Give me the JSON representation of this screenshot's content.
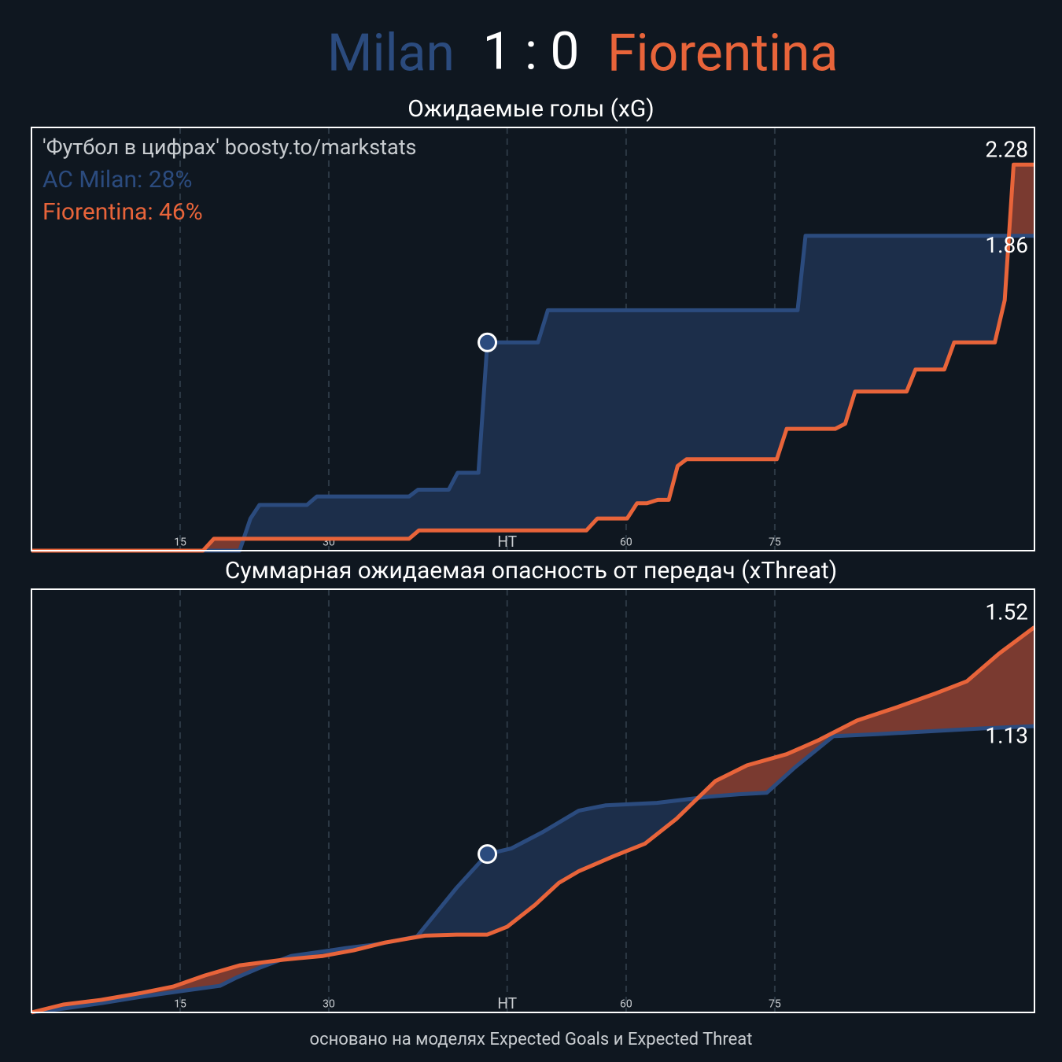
{
  "header": {
    "home": "Milan",
    "score": "1 : 0",
    "away": "Fiorentina"
  },
  "chart_data": [
    {
      "type": "line",
      "title": "Ожидаемые голы (xG)",
      "annotations": [
        "'Футбол в цифрах' boosty.to/markstats",
        "AC Milan: 28%",
        "Fiorentina: 46%"
      ],
      "xlim": [
        0,
        101.2
      ],
      "ylim": [
        0,
        2.5
      ],
      "xticks": [
        15,
        30,
        {
          "value": 48,
          "label": "HT"
        },
        60,
        75
      ],
      "grid": true,
      "goal_minute": 46,
      "series": [
        {
          "color": "#2b4b7e",
          "fill": "#1c2e4a",
          "x": [
            0,
            21,
            22.1,
            23,
            27.8,
            28.8,
            38.1,
            39,
            42.1,
            43,
            45.1,
            46,
            51.1,
            52.1,
            77.3,
            78.1,
            101.2
          ],
          "values": [
            0,
            0,
            0.19,
            0.27,
            0.27,
            0.32,
            0.32,
            0.36,
            0.36,
            0.46,
            0.46,
            1.23,
            1.23,
            1.42,
            1.42,
            1.86,
            1.86
          ]
        },
        {
          "color": "#e8643a",
          "fill": "#7a3a30",
          "x": [
            0,
            17.3,
            18.4,
            38.1,
            39.1,
            56,
            57.1,
            60.1,
            61.1,
            62.1,
            63.2,
            64.3,
            65.2,
            66.1,
            75.2,
            76.2,
            81.1,
            82.1,
            83.1,
            88.3,
            89.2,
            92.1,
            93.1,
            97.2,
            98.2,
            99.1,
            101.2
          ],
          "values": [
            0,
            0,
            0.07,
            0.07,
            0.12,
            0.12,
            0.19,
            0.19,
            0.28,
            0.28,
            0.3,
            0.3,
            0.5,
            0.54,
            0.54,
            0.72,
            0.72,
            0.75,
            0.94,
            0.94,
            1.07,
            1.07,
            1.23,
            1.23,
            1.48,
            2.28,
            2.28
          ]
        }
      ]
    },
    {
      "type": "line",
      "title": "Суммарная ожидаемая опасность от передач (xThreat)",
      "xlim": [
        0,
        101.2
      ],
      "ylim": [
        0,
        1.67
      ],
      "xticks": [
        15,
        30,
        {
          "value": 48,
          "label": "HT"
        },
        60,
        75
      ],
      "grid": true,
      "goal_minute": 46,
      "series": [
        {
          "color": "#2b4b7e",
          "fill": "#1c2e4a",
          "x": [
            0,
            3.2,
            7.1,
            11.1,
            15.1,
            19,
            20.6,
            23,
            26.2,
            30.2,
            31.7,
            34.9,
            38.9,
            42.9,
            46,
            48.4,
            51.6,
            55.2,
            57.9,
            63.1,
            68.3,
            71.4,
            74.2,
            77,
            80.9,
            85.7,
            91.3,
            96,
            101.2
          ],
          "values": [
            0,
            0.015,
            0.037,
            0.062,
            0.084,
            0.105,
            0.136,
            0.176,
            0.223,
            0.245,
            0.254,
            0.269,
            0.3,
            0.492,
            0.625,
            0.647,
            0.712,
            0.796,
            0.817,
            0.827,
            0.851,
            0.861,
            0.867,
            0.966,
            1.09,
            1.099,
            1.111,
            1.121,
            1.13
          ]
        },
        {
          "color": "#e8643a",
          "fill": "#7a3a30",
          "x": [
            0,
            3.2,
            7.1,
            11.1,
            14.3,
            17.5,
            21,
            25.4,
            29.4,
            32.5,
            35.7,
            39.7,
            42.9,
            46,
            48,
            50.8,
            53.2,
            55.2,
            58.7,
            61.9,
            65.1,
            69,
            72.2,
            76.2,
            79.4,
            83.3,
            87.3,
            91.3,
            94.4,
            97.6,
            101.2
          ],
          "values": [
            0,
            0.031,
            0.05,
            0.077,
            0.102,
            0.146,
            0.186,
            0.208,
            0.223,
            0.245,
            0.276,
            0.303,
            0.307,
            0.307,
            0.338,
            0.424,
            0.511,
            0.557,
            0.616,
            0.666,
            0.765,
            0.913,
            0.975,
            1.019,
            1.074,
            1.152,
            1.204,
            1.26,
            1.307,
            1.415,
            1.52
          ]
        }
      ]
    }
  ],
  "footer": "основано на моделях Expected Goals и Expected Threat"
}
